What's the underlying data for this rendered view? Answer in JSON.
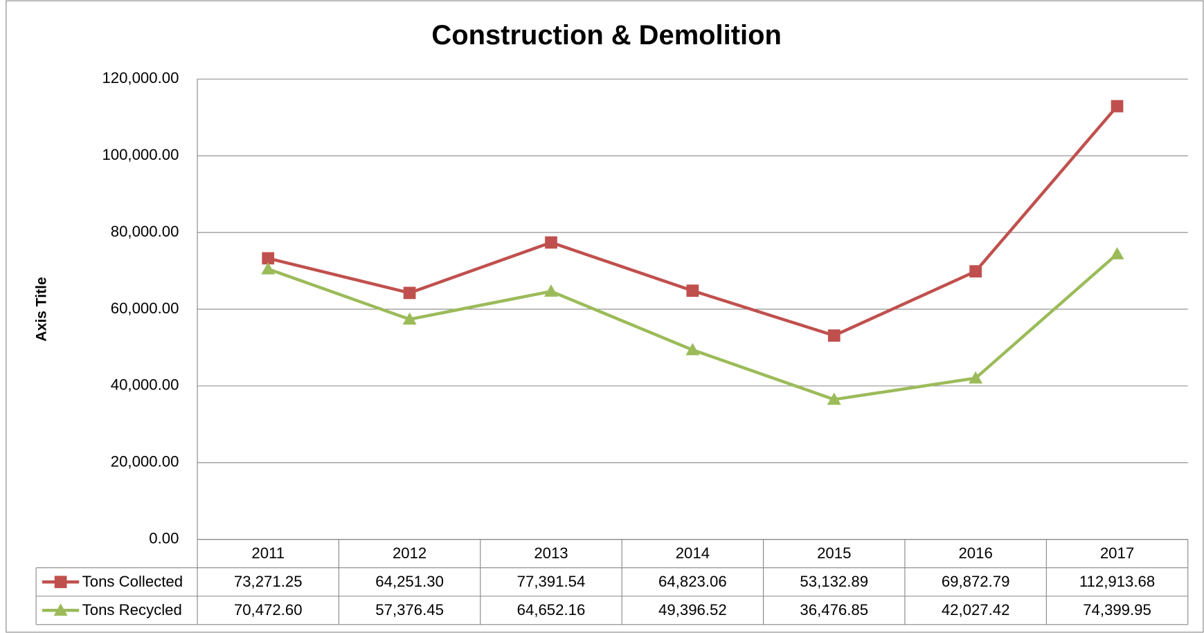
{
  "chart_data": {
    "type": "line",
    "title": "Construction & Demolition",
    "y_label": "Axis Title",
    "categories": [
      "2011",
      "2012",
      "2013",
      "2014",
      "2015",
      "2016",
      "2017"
    ],
    "series": [
      {
        "name": "Tons Collected",
        "color": "#c0504d",
        "marker": "square",
        "values": [
          73271.25,
          64251.3,
          77391.54,
          64823.06,
          53132.89,
          69872.79,
          112913.68
        ],
        "value_labels": [
          "73,271.25",
          "64,251.30",
          "77,391.54",
          "64,823.06",
          "53,132.89",
          "69,872.79",
          "112,913.68"
        ]
      },
      {
        "name": "Tons Recycled",
        "color": "#9bbb59",
        "marker": "triangle",
        "values": [
          70472.6,
          57376.45,
          64652.16,
          49396.52,
          36476.85,
          42027.42,
          74399.95
        ],
        "value_labels": [
          "70,472.60",
          "57,376.45",
          "64,652.16",
          "49,396.52",
          "36,476.85",
          "42,027.42",
          "74,399.95"
        ]
      }
    ],
    "ylim": [
      0,
      120000
    ],
    "yticks": [
      {
        "value": 0,
        "label": "0.00"
      },
      {
        "value": 20000,
        "label": "20,000.00"
      },
      {
        "value": 40000,
        "label": "40,000.00"
      },
      {
        "value": 60000,
        "label": "60,000.00"
      },
      {
        "value": 80000,
        "label": "80,000.00"
      },
      {
        "value": 100000,
        "label": "100,000.00"
      },
      {
        "value": 120000,
        "label": "120,000.00"
      }
    ],
    "grid": true,
    "data_table": true
  }
}
